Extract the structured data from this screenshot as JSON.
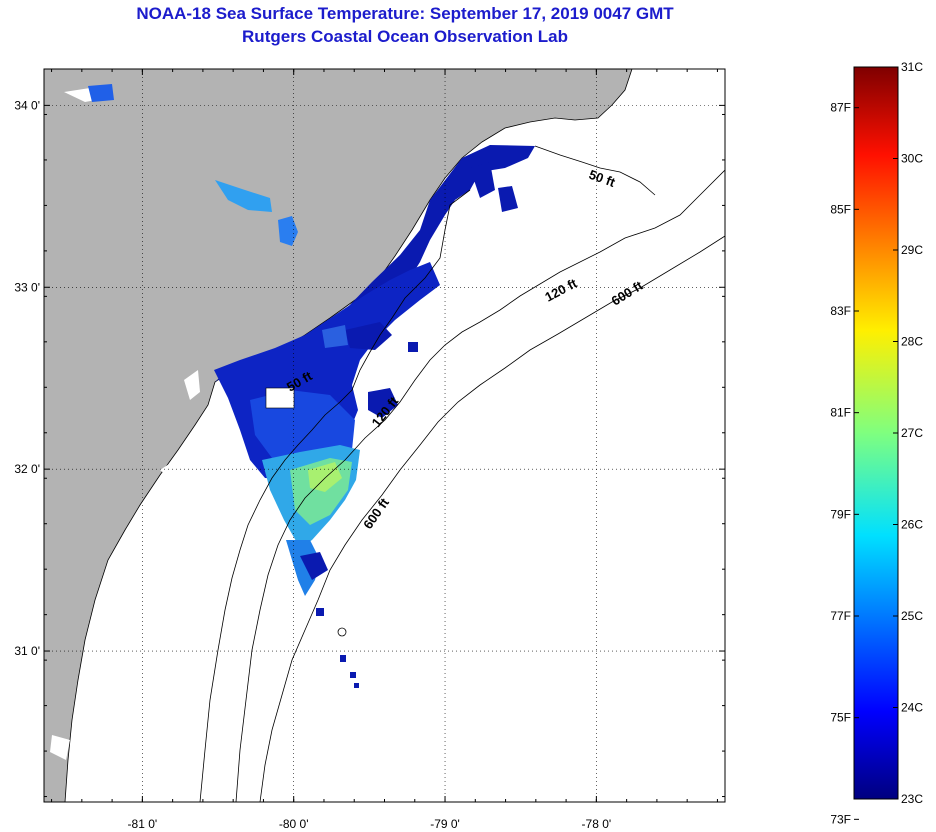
{
  "title": "NOAA-18 Sea Surface Temperature:  September 17, 2019 0047 GMT",
  "subtitle": "Rutgers Coastal Ocean Observation Lab",
  "map": {
    "lon_range": [
      -81.65,
      -77.15
    ],
    "lat_range": [
      30.17,
      34.2
    ],
    "lon_ticks": [
      {
        "value": -81,
        "label": "-81 0'"
      },
      {
        "value": -80,
        "label": "-80 0'"
      },
      {
        "value": -79,
        "label": "-79 0'"
      },
      {
        "value": -78,
        "label": "-78 0'"
      }
    ],
    "lat_ticks": [
      {
        "value": 34,
        "label": "34 0'"
      },
      {
        "value": 33,
        "label": "33 0'"
      },
      {
        "value": 32,
        "label": "32 0'"
      },
      {
        "value": 31,
        "label": "31 0'"
      }
    ],
    "gridlines": true,
    "land_color": "#b3b3b3",
    "contour_labels": [
      {
        "text": "50 ft"
      },
      {
        "text": "120 ft"
      },
      {
        "text": "600 ft"
      },
      {
        "text": "50 ft"
      },
      {
        "text": "120 ft"
      },
      {
        "text": "600 ft"
      }
    ]
  },
  "colorbar": {
    "c_labels": [
      "31C",
      "30C",
      "29C",
      "28C",
      "27C",
      "26C",
      "25C",
      "24C",
      "23C"
    ],
    "f_labels": [
      "87F",
      "85F",
      "83F",
      "81F",
      "79F",
      "77F",
      "75F",
      "73F"
    ],
    "range_c": [
      23,
      31
    ]
  }
}
